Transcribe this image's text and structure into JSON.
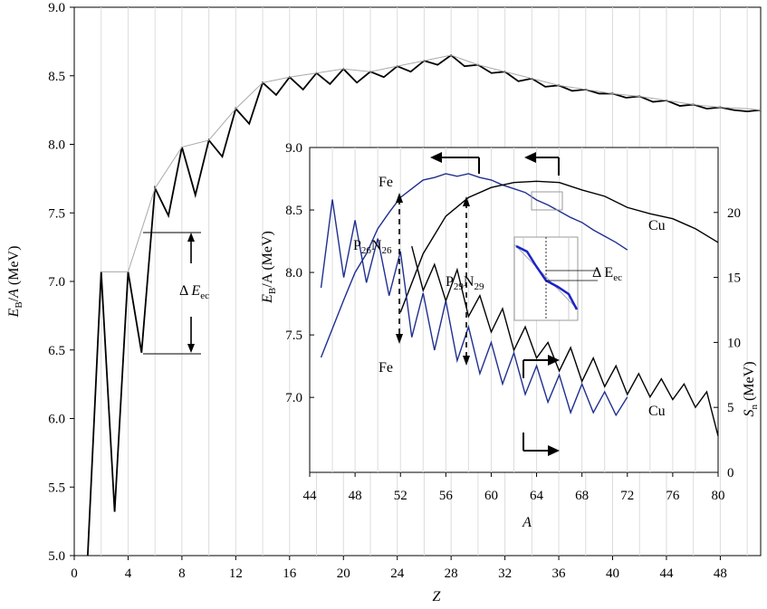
{
  "chart_data": [
    {
      "type": "line",
      "xlabel": "Z",
      "ylabel": "E_B/A (MeV)",
      "xlim": [
        0,
        51
      ],
      "ylim": [
        5.0,
        9.0
      ],
      "xticks": [
        0,
        4,
        8,
        12,
        16,
        20,
        24,
        28,
        32,
        36,
        40,
        44,
        48
      ],
      "yticks": [
        5.0,
        5.5,
        6.0,
        6.5,
        7.0,
        7.5,
        8.0,
        8.5,
        9.0
      ],
      "grid": "vertical",
      "series": [
        {
          "style": "jagged",
          "color": "#000000",
          "x": [
            1,
            2,
            3,
            4,
            5,
            6,
            7,
            8,
            9,
            10,
            11,
            12,
            13,
            14,
            15,
            16,
            17,
            18,
            19,
            20,
            21,
            22,
            23,
            24,
            25,
            26,
            27,
            28,
            29,
            30,
            31,
            32,
            33,
            34,
            35,
            36,
            37,
            38,
            39,
            40,
            41,
            42,
            43,
            44,
            45,
            46,
            47,
            48,
            49,
            50,
            51
          ],
          "y": [
            5.0,
            7.07,
            5.32,
            7.07,
            6.48,
            7.68,
            7.48,
            7.98,
            7.63,
            8.03,
            7.91,
            8.26,
            8.15,
            8.45,
            8.36,
            8.49,
            8.4,
            8.52,
            8.44,
            8.55,
            8.45,
            8.53,
            8.49,
            8.57,
            8.53,
            8.61,
            8.58,
            8.65,
            8.57,
            8.58,
            8.52,
            8.53,
            8.46,
            8.48,
            8.42,
            8.43,
            8.39,
            8.4,
            8.37,
            8.37,
            8.34,
            8.35,
            8.31,
            8.32,
            8.28,
            8.29,
            8.26,
            8.27,
            8.25,
            8.24,
            8.25
          ]
        },
        {
          "style": "envelope",
          "color": "#a8a8a8",
          "x": [
            2,
            4,
            6,
            8,
            10,
            12,
            14,
            16,
            18,
            20,
            22,
            24,
            26,
            28,
            30,
            32,
            34,
            36,
            38,
            40,
            42,
            44,
            46,
            48,
            50,
            51
          ],
          "y": [
            7.07,
            7.07,
            7.68,
            7.98,
            8.03,
            8.26,
            8.45,
            8.49,
            8.52,
            8.55,
            8.53,
            8.57,
            8.61,
            8.65,
            8.58,
            8.53,
            8.48,
            8.43,
            8.4,
            8.37,
            8.35,
            8.32,
            8.29,
            8.27,
            8.26,
            8.25
          ]
        }
      ],
      "annotations": [
        {
          "text": "Δ E",
          "subscript": "ec",
          "x": 9,
          "y1": 7.37,
          "y2": 6.48
        }
      ]
    },
    {
      "type": "line",
      "xlabel": "A",
      "ylabel_left": "E_B/A (MeV)",
      "ylabel_right": "S_n (MeV)",
      "xlim": [
        44,
        80
      ],
      "ylim_left": [
        6.4,
        9.0
      ],
      "ylim_right": [
        0,
        25
      ],
      "xticks": [
        44,
        48,
        52,
        56,
        60,
        64,
        68,
        72,
        76,
        80
      ],
      "yticks_left": [
        7.0,
        7.5,
        8.0,
        8.5,
        9.0
      ],
      "yticks_right": [
        0,
        5,
        10,
        15,
        20
      ],
      "grid": "vertical",
      "series": [
        {
          "name": "Fe",
          "axis": "left",
          "color": "#1f2f8f",
          "x": [
            45,
            46,
            47,
            48,
            49,
            50,
            51,
            52,
            53,
            54,
            55,
            56,
            57,
            58,
            59,
            60,
            61,
            62,
            63,
            64,
            65,
            66,
            67,
            68,
            69,
            70,
            71,
            72
          ],
          "y": [
            7.32,
            7.55,
            7.78,
            8.0,
            8.15,
            8.35,
            8.48,
            8.6,
            8.67,
            8.74,
            8.76,
            8.79,
            8.77,
            8.79,
            8.76,
            8.74,
            8.7,
            8.67,
            8.64,
            8.58,
            8.54,
            8.49,
            8.44,
            8.4,
            8.34,
            8.29,
            8.24,
            8.18
          ]
        },
        {
          "name": "Cu",
          "axis": "left",
          "color": "#000000",
          "x": [
            52,
            54,
            56,
            58,
            60,
            62,
            64,
            66,
            68,
            70,
            72,
            74,
            76,
            78,
            80
          ],
          "y": [
            7.68,
            8.15,
            8.45,
            8.6,
            8.68,
            8.72,
            8.73,
            8.72,
            8.66,
            8.61,
            8.52,
            8.47,
            8.43,
            8.35,
            8.24
          ]
        },
        {
          "name": "Fe",
          "axis": "right",
          "color": "#1f2f8f",
          "x": [
            45,
            46,
            47,
            48,
            49,
            50,
            51,
            52,
            53,
            54,
            55,
            56,
            57,
            58,
            59,
            60,
            61,
            62,
            63,
            64,
            65,
            66,
            67,
            68,
            69,
            70,
            71,
            72
          ],
          "y": [
            14.2,
            21.0,
            15.0,
            19.4,
            14.6,
            18.0,
            13.6,
            17.0,
            10.4,
            13.8,
            9.4,
            13.2,
            8.6,
            11.2,
            7.6,
            10.0,
            6.8,
            9.2,
            6.0,
            8.2,
            5.4,
            7.5,
            4.6,
            6.8,
            4.6,
            6.2,
            4.4,
            5.8
          ]
        },
        {
          "name": "Cu",
          "axis": "right",
          "color": "#000000",
          "x": [
            53,
            54,
            55,
            56,
            57,
            58,
            59,
            60,
            61,
            62,
            63,
            64,
            65,
            66,
            67,
            68,
            69,
            70,
            71,
            72,
            73,
            74,
            75,
            76,
            77,
            78,
            79,
            80
          ],
          "y": [
            17.4,
            14.0,
            16.0,
            13.2,
            15.6,
            12.0,
            13.6,
            10.8,
            12.6,
            9.4,
            11.2,
            8.8,
            10.0,
            7.8,
            9.6,
            7.0,
            8.8,
            6.6,
            8.2,
            6.0,
            7.6,
            5.8,
            7.2,
            5.6,
            6.8,
            5.0,
            6.2,
            2.8
          ]
        }
      ],
      "labels": {
        "fe_top": "Fe",
        "cu_top": "Cu",
        "fe_bottom": "Fe",
        "cu_bottom": "Cu",
        "p26_base": "P",
        "p26_sub": "26",
        "n26_base": "N",
        "n26_sub": "26",
        "p29_base": "P",
        "p29_sub": "29",
        "n29_base": "N",
        "n29_sub": "29",
        "delta_base": "Δ E",
        "delta_sub": "ec"
      }
    }
  ]
}
